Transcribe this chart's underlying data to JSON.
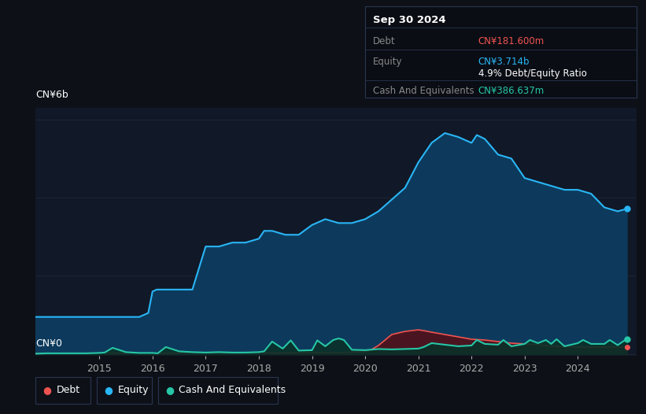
{
  "bg_color": "#0d1117",
  "plot_bg_color": "#111827",
  "grid_color": "#1e2535",
  "equity_color": "#29b6f6",
  "equity_fill": "#0d3a5c",
  "debt_color": "#ef5350",
  "debt_fill": "#4a1520",
  "cash_color": "#26c6a6",
  "cash_fill": "#0a3028",
  "ylabel_6b": "CN¥6b",
  "ylabel_0": "CN¥0",
  "x_ticks": [
    2015,
    2016,
    2017,
    2018,
    2019,
    2020,
    2021,
    2022,
    2023,
    2024
  ],
  "tooltip_bg": "#0a0d14",
  "tooltip_border": "#2a3550",
  "tooltip_title": "Sep 30 2024",
  "tooltip_debt_label": "Debt",
  "tooltip_debt_value": "CN¥181.600m",
  "tooltip_equity_label": "Equity",
  "tooltip_equity_value": "CN¥3.714b",
  "tooltip_ratio": "4.9% Debt/Equity Ratio",
  "tooltip_cash_label": "Cash And Equivalents",
  "tooltip_cash_value": "CN¥386.637m",
  "legend_debt": "Debt",
  "legend_equity": "Equity",
  "legend_cash": "Cash And Equivalents",
  "equity_x": [
    2013.8,
    2014.0,
    2014.25,
    2014.5,
    2014.75,
    2015.0,
    2015.25,
    2015.5,
    2015.75,
    2015.92,
    2016.0,
    2016.08,
    2016.25,
    2016.5,
    2016.75,
    2017.0,
    2017.25,
    2017.5,
    2017.75,
    2018.0,
    2018.1,
    2018.25,
    2018.5,
    2018.75,
    2019.0,
    2019.25,
    2019.5,
    2019.75,
    2020.0,
    2020.25,
    2020.5,
    2020.75,
    2021.0,
    2021.25,
    2021.5,
    2021.75,
    2022.0,
    2022.1,
    2022.25,
    2022.5,
    2022.75,
    2023.0,
    2023.25,
    2023.5,
    2023.75,
    2024.0,
    2024.25,
    2024.5,
    2024.75,
    2024.92
  ],
  "equity_y": [
    0.95,
    0.95,
    0.95,
    0.95,
    0.95,
    0.95,
    0.95,
    0.95,
    0.95,
    1.05,
    1.6,
    1.65,
    1.65,
    1.65,
    1.65,
    2.75,
    2.75,
    2.85,
    2.85,
    2.95,
    3.15,
    3.15,
    3.05,
    3.05,
    3.3,
    3.45,
    3.35,
    3.35,
    3.45,
    3.65,
    3.95,
    4.25,
    4.9,
    5.4,
    5.65,
    5.55,
    5.4,
    5.6,
    5.5,
    5.1,
    5.0,
    4.5,
    4.4,
    4.3,
    4.2,
    4.2,
    4.1,
    3.75,
    3.65,
    3.714
  ],
  "debt_x": [
    2013.8,
    2014.0,
    2014.5,
    2015.0,
    2015.5,
    2016.0,
    2016.5,
    2017.0,
    2017.5,
    2018.0,
    2018.5,
    2019.0,
    2019.5,
    2019.75,
    2020.0,
    2020.1,
    2020.25,
    2020.5,
    2020.75,
    2021.0,
    2021.1,
    2021.25,
    2021.5,
    2021.75,
    2022.0,
    2022.25,
    2022.5,
    2022.75,
    2023.0,
    2023.25,
    2023.5,
    2023.75,
    2024.0,
    2024.25,
    2024.5,
    2024.75,
    2024.92
  ],
  "debt_y": [
    0.01,
    0.01,
    0.01,
    0.02,
    0.02,
    0.02,
    0.02,
    0.02,
    0.02,
    0.03,
    0.03,
    0.04,
    0.04,
    0.05,
    0.06,
    0.1,
    0.22,
    0.5,
    0.58,
    0.62,
    0.6,
    0.56,
    0.5,
    0.44,
    0.38,
    0.36,
    0.32,
    0.28,
    0.26,
    0.24,
    0.2,
    0.19,
    0.18,
    0.18,
    0.18,
    0.18,
    0.1816
  ],
  "cash_x": [
    2013.8,
    2014.0,
    2014.25,
    2014.5,
    2014.75,
    2015.0,
    2015.1,
    2015.25,
    2015.5,
    2015.75,
    2015.9,
    2016.0,
    2016.1,
    2016.25,
    2016.5,
    2016.75,
    2017.0,
    2017.25,
    2017.5,
    2017.75,
    2018.0,
    2018.1,
    2018.25,
    2018.45,
    2018.6,
    2018.75,
    2019.0,
    2019.1,
    2019.25,
    2019.4,
    2019.5,
    2019.6,
    2019.75,
    2020.0,
    2020.25,
    2020.5,
    2020.75,
    2021.0,
    2021.1,
    2021.25,
    2021.5,
    2021.75,
    2022.0,
    2022.1,
    2022.25,
    2022.5,
    2022.6,
    2022.75,
    2023.0,
    2023.1,
    2023.25,
    2023.4,
    2023.5,
    2023.6,
    2023.75,
    2024.0,
    2024.1,
    2024.25,
    2024.5,
    2024.6,
    2024.75,
    2024.92
  ],
  "cash_y": [
    0.01,
    0.02,
    0.02,
    0.02,
    0.02,
    0.03,
    0.04,
    0.16,
    0.05,
    0.03,
    0.03,
    0.03,
    0.02,
    0.18,
    0.07,
    0.05,
    0.04,
    0.05,
    0.04,
    0.04,
    0.05,
    0.07,
    0.32,
    0.14,
    0.35,
    0.09,
    0.1,
    0.35,
    0.2,
    0.36,
    0.4,
    0.36,
    0.11,
    0.1,
    0.13,
    0.12,
    0.13,
    0.14,
    0.18,
    0.28,
    0.24,
    0.2,
    0.22,
    0.36,
    0.26,
    0.24,
    0.36,
    0.2,
    0.26,
    0.36,
    0.28,
    0.36,
    0.26,
    0.38,
    0.2,
    0.28,
    0.36,
    0.26,
    0.26,
    0.36,
    0.23,
    0.3866
  ]
}
